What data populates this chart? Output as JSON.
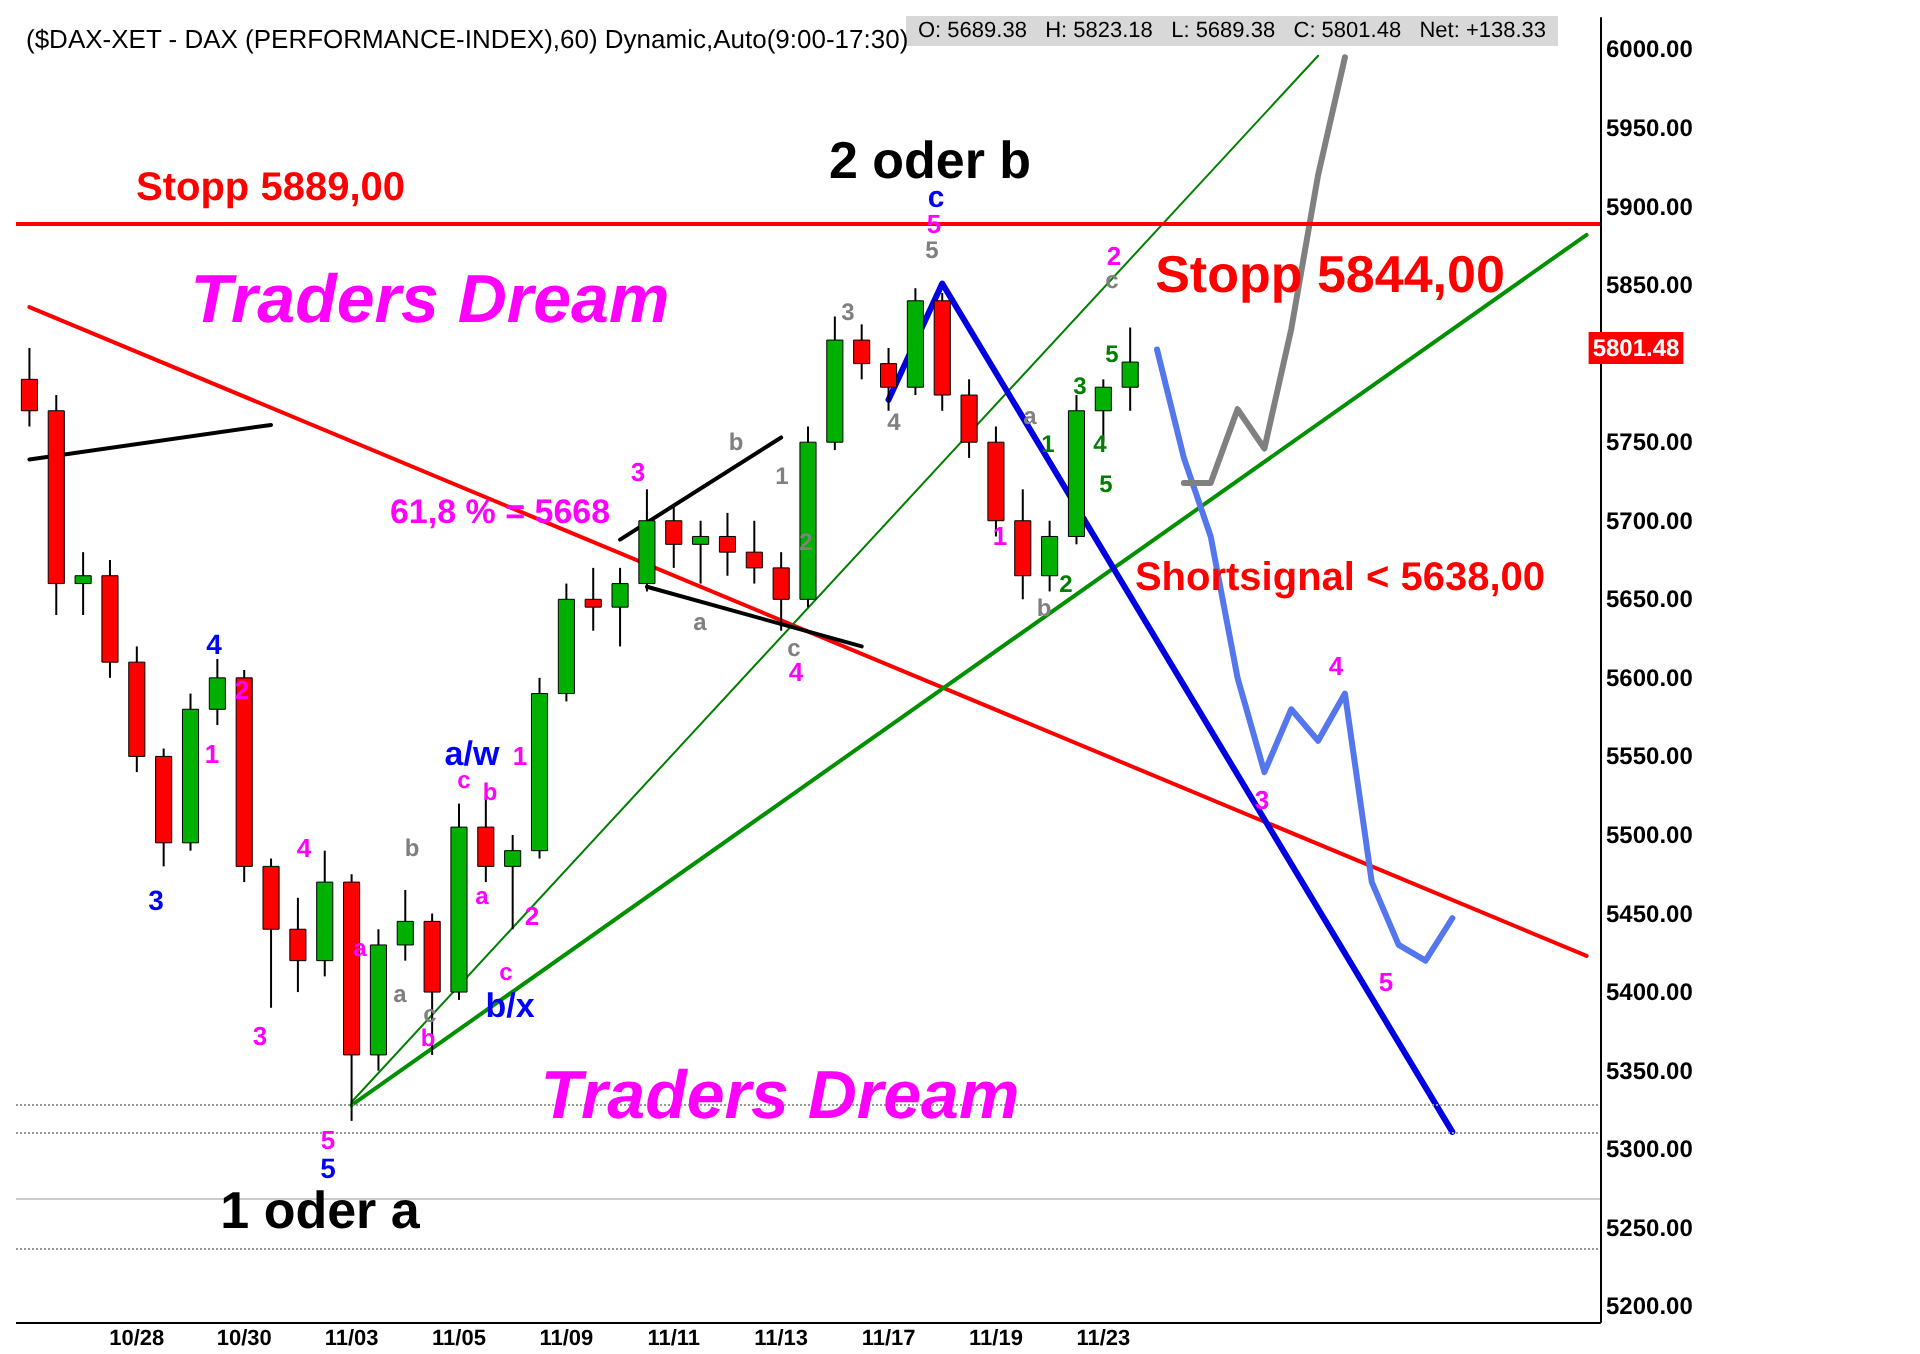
{
  "chart_data": {
    "type": "candlestick",
    "title": "($DAX-XET - DAX (PERFORMANCE-INDEX),60) Dynamic,Auto(9:00-17:30)",
    "subtitle": "O: 5689.38   H: 5823.18   L: 5689.38   C: 5801.48   Net: +138.33",
    "categories": [
      null,
      null,
      null,
      null,
      "10/28",
      null,
      null,
      null,
      "10/30",
      null,
      null,
      null,
      "11/03",
      null,
      null,
      null,
      "11/05",
      null,
      null,
      null,
      "11/09",
      null,
      null,
      null,
      "11/11",
      null,
      null,
      null,
      "11/13",
      null,
      null,
      null,
      "11/17",
      null,
      null,
      null,
      "11/19",
      null,
      null,
      null,
      "11/23",
      null,
      null,
      null,
      null,
      null,
      null,
      null,
      null,
      null,
      null,
      null,
      null,
      null,
      null,
      null,
      null,
      null,
      null
    ],
    "ohlc": [
      [
        5790,
        5810,
        5760,
        5770
      ],
      [
        5770,
        5780,
        5640,
        5660
      ],
      [
        5660,
        5680,
        5640,
        5665
      ],
      [
        5665,
        5675,
        5600,
        5610
      ],
      [
        5610,
        5620,
        5540,
        5550
      ],
      [
        5550,
        5555,
        5480,
        5495
      ],
      [
        5495,
        5590,
        5490,
        5580
      ],
      [
        5580,
        5612,
        5570,
        5600
      ],
      [
        5600,
        5605,
        5470,
        5480
      ],
      [
        5480,
        5485,
        5390,
        5440
      ],
      [
        5440,
        5460,
        5400,
        5420
      ],
      [
        5420,
        5490,
        5410,
        5470
      ],
      [
        5470,
        5475,
        5318,
        5360
      ],
      [
        5360,
        5440,
        5350,
        5430
      ],
      [
        5430,
        5465,
        5420,
        5445
      ],
      [
        5445,
        5450,
        5360,
        5400
      ],
      [
        5400,
        5520,
        5395,
        5505
      ],
      [
        5505,
        5525,
        5470,
        5480
      ],
      [
        5480,
        5500,
        5440,
        5490
      ],
      [
        5490,
        5600,
        5485,
        5590
      ],
      [
        5590,
        5660,
        5585,
        5650
      ],
      [
        5650,
        5670,
        5630,
        5645
      ],
      [
        5645,
        5670,
        5620,
        5660
      ],
      [
        5660,
        5720,
        5655,
        5700
      ],
      [
        5700,
        5710,
        5670,
        5685
      ],
      [
        5685,
        5700,
        5660,
        5690
      ],
      [
        5690,
        5705,
        5665,
        5680
      ],
      [
        5680,
        5700,
        5660,
        5670
      ],
      [
        5670,
        5680,
        5630,
        5650
      ],
      [
        5650,
        5760,
        5645,
        5750
      ],
      [
        5750,
        5830,
        5745,
        5815
      ],
      [
        5815,
        5825,
        5790,
        5800
      ],
      [
        5800,
        5810,
        5770,
        5785
      ],
      [
        5785,
        5848,
        5780,
        5840
      ],
      [
        5840,
        5845,
        5770,
        5780
      ],
      [
        5780,
        5790,
        5740,
        5750
      ],
      [
        5750,
        5760,
        5690,
        5700
      ],
      [
        5700,
        5720,
        5650,
        5665
      ],
      [
        5665,
        5700,
        5655,
        5690
      ],
      [
        5690,
        5780,
        5685,
        5770
      ],
      [
        5770,
        5790,
        5750,
        5785
      ],
      [
        5785,
        5823,
        5770,
        5801
      ],
      null,
      null,
      null,
      null,
      null,
      null,
      null,
      null,
      null,
      null,
      null,
      null,
      null,
      null,
      null,
      null,
      null
    ],
    "colors": [
      "#ff0000",
      "#ff0000",
      "#00b000",
      "#ff0000",
      "#ff0000",
      "#ff0000",
      "#00b000",
      "#00b000",
      "#ff0000",
      "#ff0000",
      "#ff0000",
      "#00b000",
      "#ff0000",
      "#00b000",
      "#00b000",
      "#ff0000",
      "#00b000",
      "#ff0000",
      "#00b000",
      "#00b000",
      "#00b000",
      "#ff0000",
      "#00b000",
      "#00b000",
      "#ff0000",
      "#00b000",
      "#ff0000",
      "#ff0000",
      "#ff0000",
      "#00b000",
      "#00b000",
      "#ff0000",
      "#ff0000",
      "#00b000",
      "#ff0000",
      "#ff0000",
      "#ff0000",
      "#ff0000",
      "#00b000",
      "#00b000",
      "#00b000",
      "#00b000",
      null,
      null,
      null,
      null,
      null,
      null,
      null,
      null,
      null,
      null,
      null,
      null,
      null,
      null,
      null,
      null,
      null
    ],
    "series": [
      {
        "type": "line",
        "color": "#ff0000",
        "values": [
          5836,
          null,
          null,
          null,
          null,
          null,
          null,
          null,
          null,
          null,
          null,
          null,
          null,
          null,
          null,
          null,
          null,
          null,
          null,
          null,
          null,
          null,
          null,
          null,
          null,
          null,
          null,
          null,
          null,
          null,
          null,
          null,
          null,
          null,
          null,
          null,
          null,
          null,
          null,
          null,
          null,
          null,
          null,
          null,
          null,
          null,
          null,
          null,
          null,
          null,
          null,
          null,
          null,
          null,
          null,
          null,
          null,
          null,
          5423
        ]
      },
      {
        "type": "line",
        "color": "#008000",
        "values": [
          null,
          null,
          null,
          null,
          null,
          null,
          null,
          null,
          null,
          null,
          null,
          null,
          5330,
          null,
          null,
          null,
          null,
          null,
          null,
          null,
          null,
          null,
          null,
          null,
          null,
          null,
          null,
          null,
          null,
          null,
          null,
          null,
          null,
          null,
          null,
          null,
          null,
          null,
          null,
          null,
          null,
          null,
          null,
          null,
          null,
          null,
          null,
          null,
          5996,
          null,
          null,
          null,
          null,
          null,
          null,
          null,
          null,
          null,
          null
        ]
      },
      {
        "type": "line",
        "color": "#009000",
        "values": [
          null,
          null,
          null,
          null,
          null,
          null,
          null,
          null,
          null,
          null,
          null,
          null,
          5328,
          null,
          null,
          null,
          null,
          null,
          null,
          null,
          null,
          null,
          null,
          null,
          null,
          null,
          null,
          null,
          null,
          null,
          null,
          null,
          null,
          null,
          null,
          null,
          null,
          null,
          null,
          null,
          null,
          null,
          null,
          null,
          null,
          null,
          null,
          null,
          null,
          null,
          null,
          null,
          null,
          null,
          null,
          null,
          null,
          null,
          5882
        ]
      },
      {
        "type": "line",
        "color": "#000000",
        "values": [
          5739,
          null,
          null,
          null,
          null,
          null,
          null,
          null,
          null,
          5761,
          null,
          null,
          null,
          null,
          null,
          null,
          null,
          null,
          null,
          null,
          null,
          null,
          null,
          null,
          null,
          null,
          null,
          null,
          null,
          null,
          null,
          null,
          null,
          null,
          null,
          null,
          null,
          null,
          null,
          null,
          null,
          null,
          null,
          null,
          null,
          null,
          null,
          null,
          null,
          null,
          null,
          null,
          null,
          null,
          null,
          null,
          null,
          null,
          null
        ]
      },
      {
        "type": "line",
        "color": "#000000",
        "values": [
          null,
          null,
          null,
          null,
          null,
          null,
          null,
          null,
          null,
          null,
          null,
          null,
          null,
          null,
          null,
          null,
          null,
          null,
          null,
          null,
          null,
          null,
          5688,
          null,
          null,
          null,
          null,
          null,
          5753,
          null,
          null,
          null,
          null,
          null,
          null,
          null,
          null,
          null,
          null,
          null,
          null,
          null,
          null,
          null,
          null,
          null,
          null,
          null,
          null,
          null,
          null,
          null,
          null,
          null,
          null,
          null,
          null,
          null,
          null
        ]
      },
      {
        "type": "line",
        "color": "#000000",
        "values": [
          null,
          null,
          null,
          null,
          null,
          null,
          null,
          null,
          null,
          null,
          null,
          null,
          null,
          null,
          null,
          null,
          null,
          null,
          null,
          null,
          null,
          null,
          null,
          5658,
          null,
          null,
          null,
          null,
          null,
          null,
          null,
          5620,
          null,
          null,
          null,
          null,
          null,
          null,
          null,
          null,
          null,
          null,
          null,
          null,
          null,
          null,
          null,
          null,
          null,
          null,
          null,
          null,
          null,
          null,
          null,
          null,
          null,
          null,
          null
        ]
      },
      {
        "type": "line",
        "color": "#0000e0",
        "values": [
          null,
          null,
          null,
          null,
          null,
          null,
          null,
          null,
          null,
          null,
          null,
          null,
          null,
          null,
          null,
          null,
          null,
          null,
          null,
          null,
          null,
          null,
          null,
          null,
          null,
          null,
          null,
          null,
          null,
          null,
          null,
          null,
          5777,
          null,
          5851,
          null,
          null,
          null,
          null,
          null,
          null,
          null,
          null,
          null,
          null,
          null,
          null,
          null,
          null,
          null,
          null,
          null,
          null,
          5311,
          null,
          null,
          null,
          null,
          null
        ]
      },
      {
        "type": "line",
        "color": "#5577ee",
        "values": [
          null,
          null,
          null,
          null,
          null,
          null,
          null,
          null,
          null,
          null,
          null,
          null,
          null,
          null,
          null,
          null,
          null,
          null,
          null,
          null,
          null,
          null,
          null,
          null,
          null,
          null,
          null,
          null,
          null,
          null,
          null,
          null,
          null,
          null,
          null,
          null,
          null,
          null,
          null,
          null,
          null,
          null,
          5809,
          5740,
          5690,
          5600,
          5540,
          5580,
          5560,
          5590,
          5470,
          5430,
          5420,
          5447,
          null,
          null,
          null,
          null,
          null
        ]
      },
      {
        "type": "line",
        "color": "#808080",
        "values": [
          null,
          null,
          null,
          null,
          null,
          null,
          null,
          null,
          null,
          null,
          null,
          null,
          null,
          null,
          null,
          null,
          null,
          null,
          null,
          null,
          null,
          null,
          null,
          null,
          null,
          null,
          null,
          null,
          null,
          null,
          null,
          null,
          null,
          null,
          null,
          null,
          null,
          null,
          null,
          null,
          null,
          null,
          null,
          5724,
          5724,
          5771,
          5746,
          5822,
          5920,
          5995,
          null,
          null,
          null,
          null,
          null,
          null,
          null,
          null,
          null
        ]
      }
    ],
    "ylim": [
      5190,
      6020
    ],
    "yticks": [
      {
        "value": 5200,
        "label": "5200.00"
      },
      {
        "value": 5250,
        "label": "5250.00"
      },
      {
        "value": 5300,
        "label": "5300.00"
      },
      {
        "value": 5350,
        "label": "5350.00"
      },
      {
        "value": 5400,
        "label": "5400.00"
      },
      {
        "value": 5450,
        "label": "5450.00"
      },
      {
        "value": 5500,
        "label": "5500.00"
      },
      {
        "value": 5550,
        "label": "5550.00"
      },
      {
        "value": 5600,
        "label": "5600.00"
      },
      {
        "value": 5650,
        "label": "5650.00"
      },
      {
        "value": 5700,
        "label": "5700.00"
      },
      {
        "value": 5750,
        "label": "5750.00"
      },
      {
        "value": 5850,
        "label": "5850.00"
      },
      {
        "value": 5900,
        "label": "5900.00"
      },
      {
        "value": 5950,
        "label": "5950.00"
      },
      {
        "value": 6000,
        "label": "6000.00"
      }
    ],
    "ref_lines": [
      {
        "axis": "y",
        "value": 5889,
        "label": "Stopp 5889,00",
        "color": "#ff0000"
      },
      {
        "axis": "y",
        "value": 5328,
        "label": null,
        "color": "#999999",
        "line_style": "dotted"
      },
      {
        "axis": "y",
        "value": 5310,
        "label": null,
        "color": "#999999",
        "line_style": "dotted"
      },
      {
        "axis": "y",
        "value": 5269,
        "label": null,
        "color": "#cccccc"
      },
      {
        "axis": "y",
        "value": 5237,
        "label": null,
        "color": "#999999",
        "line_style": "dotted"
      }
    ],
    "annotations": [
      "Traders Dream",
      "Traders Dream",
      "Stopp 5844,00",
      "Shortsignal < 5638,00",
      "61,8 % = 5668",
      "2 oder b",
      "1 oder a",
      "a/w",
      "b/x",
      "c",
      "3",
      "4",
      "5",
      "1",
      "2",
      "4",
      "3",
      "5",
      "1",
      "2",
      "3",
      "4",
      "5",
      "1",
      "2",
      "3",
      "4",
      "5",
      "a",
      "b",
      "c",
      "b",
      "a",
      "a",
      "c",
      "c",
      "b",
      "a",
      "b",
      "1",
      "2",
      "c",
      "3",
      "4",
      "5",
      "a",
      "b",
      "1",
      "2",
      "3",
      "4",
      "5",
      "5",
      "c",
      "5801.48"
    ],
    "grid": false
  }
}
